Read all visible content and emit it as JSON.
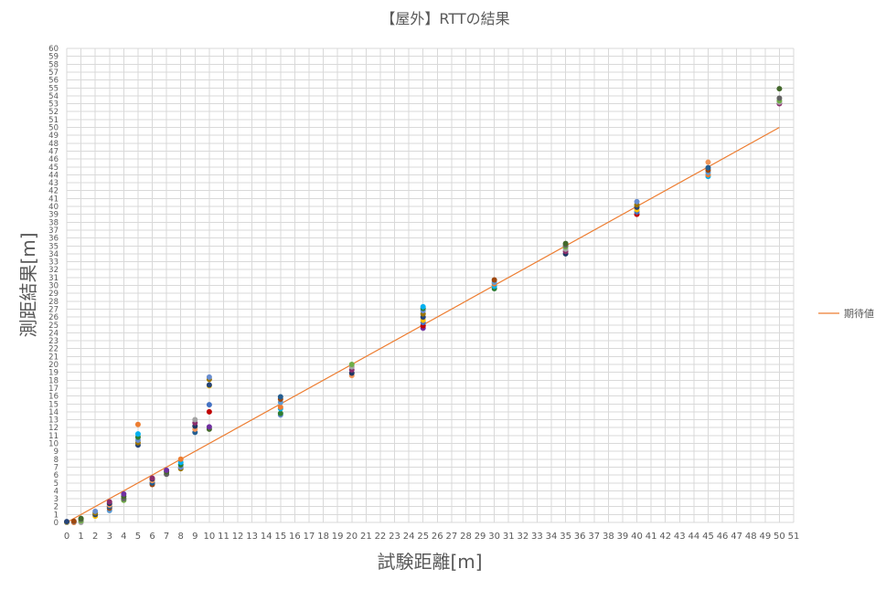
{
  "chart_data": {
    "type": "scatter",
    "title": "【屋外】RTTの結果",
    "xlabel": "試験距離[m]",
    "ylabel": "測距結果[m]",
    "xlim": [
      0,
      51
    ],
    "ylim": [
      0,
      60
    ],
    "x_ticks": [
      0,
      1,
      2,
      3,
      4,
      5,
      6,
      7,
      8,
      9,
      10,
      11,
      12,
      13,
      14,
      15,
      16,
      17,
      18,
      19,
      20,
      21,
      22,
      23,
      24,
      25,
      26,
      27,
      28,
      29,
      30,
      31,
      32,
      33,
      34,
      35,
      36,
      37,
      38,
      39,
      40,
      41,
      42,
      43,
      44,
      45,
      46,
      47,
      48,
      49,
      50,
      51
    ],
    "y_ticks": [
      0,
      1,
      2,
      3,
      4,
      5,
      6,
      7,
      8,
      9,
      10,
      11,
      12,
      13,
      14,
      15,
      16,
      17,
      18,
      19,
      20,
      21,
      22,
      23,
      24,
      25,
      26,
      27,
      28,
      29,
      30,
      31,
      32,
      33,
      34,
      35,
      36,
      37,
      38,
      39,
      40,
      41,
      42,
      43,
      44,
      45,
      46,
      47,
      48,
      49,
      50,
      51,
      52,
      53,
      54,
      55,
      56,
      57,
      58,
      59,
      60
    ],
    "grid": true,
    "legend_position": "right",
    "expected_line": {
      "name": "期待値",
      "color": "#ED7D31",
      "x": [
        0,
        50
      ],
      "y": [
        0,
        50
      ]
    },
    "measurement_colors": [
      "#4472C4",
      "#ED7D31",
      "#A5A5A5",
      "#FFC000",
      "#5B9BD5",
      "#70AD47",
      "#264478",
      "#9E480E",
      "#636363",
      "#997300",
      "#255E91",
      "#43682B",
      "#698ED0",
      "#F1975A",
      "#7030A0",
      "#2E7D32",
      "#1F3864",
      "#C00000",
      "#00B0F0",
      "#8B2D6B"
    ],
    "measurements": [
      {
        "x": 0,
        "ys": [
          0.0,
          0.05,
          0.1
        ]
      },
      {
        "x": 0.5,
        "ys": [
          0.0,
          0.1,
          0.15
        ]
      },
      {
        "x": 1,
        "ys": [
          0.0,
          0.2,
          0.4,
          0.5
        ]
      },
      {
        "x": 2,
        "ys": [
          0.8,
          1.0,
          1.2,
          1.4
        ]
      },
      {
        "x": 3,
        "ys": [
          1.5,
          1.8,
          2.0,
          2.2,
          2.4,
          2.6
        ]
      },
      {
        "x": 4,
        "ys": [
          2.8,
          3.0,
          3.3,
          3.6
        ]
      },
      {
        "x": 5,
        "ys": [
          9.8,
          10.1,
          10.4,
          10.8,
          11.2,
          12.4
        ]
      },
      {
        "x": 6,
        "ys": [
          4.8,
          5.0,
          5.3,
          5.5,
          5.6
        ]
      },
      {
        "x": 7,
        "ys": [
          6.1,
          6.4,
          6.6
        ]
      },
      {
        "x": 8,
        "ys": [
          6.8,
          7.0,
          7.3,
          7.6,
          8.0
        ]
      },
      {
        "x": 9,
        "ys": [
          11.4,
          11.8,
          12.2,
          12.6,
          13.0
        ]
      },
      {
        "x": 10,
        "ys": [
          11.8,
          12.1,
          14.0,
          14.9,
          17.3,
          17.4,
          18.1,
          18.4
        ]
      },
      {
        "x": 15,
        "ys": [
          13.6,
          13.8,
          14.4,
          14.6,
          15.2,
          15.6,
          15.9
        ]
      },
      {
        "x": 20,
        "ys": [
          18.6,
          18.9,
          19.3,
          19.7,
          20.0
        ]
      },
      {
        "x": 25,
        "ys": [
          24.6,
          24.9,
          25.3,
          25.6,
          26.0,
          26.4,
          26.8,
          27.1,
          27.3
        ]
      },
      {
        "x": 30,
        "ys": [
          29.6,
          29.9,
          30.2,
          30.4,
          30.7
        ]
      },
      {
        "x": 35,
        "ys": [
          34.0,
          34.3,
          34.6,
          34.9,
          35.1,
          35.3
        ]
      },
      {
        "x": 40,
        "ys": [
          39.0,
          39.3,
          39.6,
          39.9,
          40.2,
          40.6
        ]
      },
      {
        "x": 45,
        "ys": [
          43.8,
          44.0,
          44.3,
          44.6,
          44.9,
          45.6
        ]
      },
      {
        "x": 50,
        "ys": [
          53.0,
          53.2,
          53.4,
          53.7,
          54.9
        ]
      }
    ]
  }
}
